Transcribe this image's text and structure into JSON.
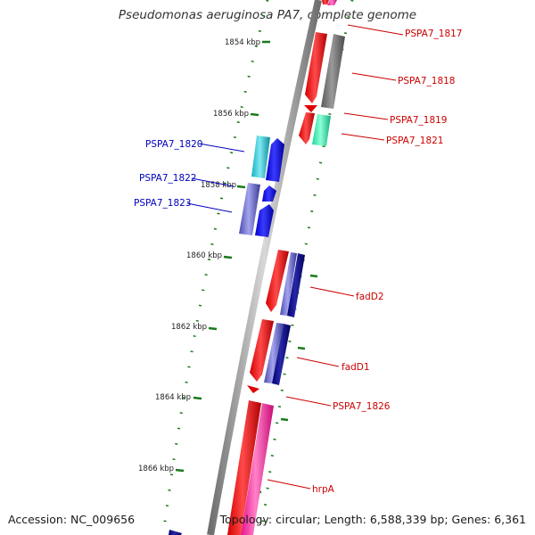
{
  "title": "Pseudomonas aeruginosa PA7, complete genome",
  "footer": {
    "accession": "Accession: NC_009656",
    "topology": "Topology: circular; Length: 6,588,339 bp; Genes: 6,361"
  },
  "colors": {
    "backbone": "#888888",
    "tick": "#1a7a1a",
    "forward_label": "#cc0000",
    "reverse_label": "#0000bb"
  },
  "ruler": [
    {
      "label": "1854 kbp"
    },
    {
      "label": "1856 kbp"
    },
    {
      "label": "1858 kbp"
    },
    {
      "label": "1860 kbp"
    },
    {
      "label": "1862 kbp"
    },
    {
      "label": "1864 kbp"
    },
    {
      "label": "1866 kbp"
    }
  ],
  "gene_labels": {
    "forward": [
      "PSPA7_1817",
      "PSPA7_1818",
      "PSPA7_1819",
      "PSPA7_1821",
      "fadD2",
      "fadD1",
      "PSPA7_1826",
      "hrpA"
    ],
    "reverse": [
      "PSPA7_1820",
      "PSPA7_1822",
      "PSPA7_1823"
    ]
  }
}
